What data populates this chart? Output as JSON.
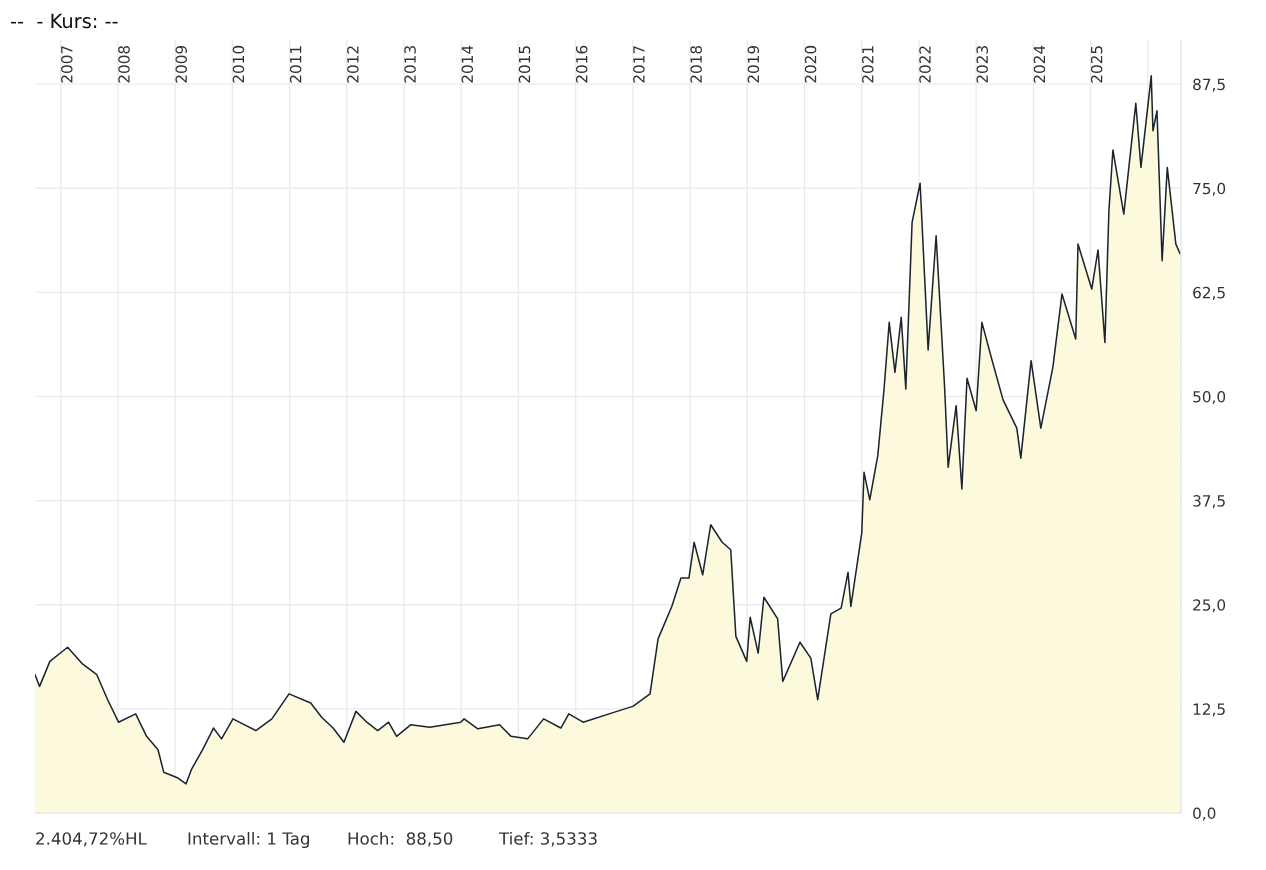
{
  "chart_data": {
    "type": "area",
    "title": "--  - Kurs: --",
    "x": [
      2006.55,
      2006.63,
      2006.81,
      2007.12,
      2007.38,
      2007.63,
      2007.82,
      2008.01,
      2008.31,
      2008.5,
      2008.7,
      2008.8,
      2009.05,
      2009.19,
      2009.29,
      2009.48,
      2009.67,
      2009.81,
      2010.01,
      2010.41,
      2010.69,
      2010.99,
      2011.37,
      2011.56,
      2011.76,
      2011.95,
      2012.16,
      2012.35,
      2012.54,
      2012.73,
      2012.87,
      2013.12,
      2013.45,
      2013.99,
      2014.05,
      2014.29,
      2014.67,
      2014.87,
      2015.16,
      2015.44,
      2015.74,
      2015.88,
      2016.13,
      2016.72,
      2017.0,
      2017.3,
      2017.44,
      2017.68,
      2017.84,
      2017.98,
      2018.07,
      2018.22,
      2018.36,
      2018.56,
      2018.71,
      2018.8,
      2018.99,
      2019.05,
      2019.19,
      2019.29,
      2019.53,
      2019.62,
      2019.92,
      2020.11,
      2020.23,
      2020.46,
      2020.64,
      2020.76,
      2020.81,
      2021.0,
      2021.04,
      2021.14,
      2021.28,
      2021.39,
      2021.48,
      2021.58,
      2021.69,
      2021.77,
      2021.88,
      2022.02,
      2022.16,
      2022.3,
      2022.45,
      2022.51,
      2022.65,
      2022.75,
      2022.84,
      2023.0,
      2023.1,
      2023.28,
      2023.47,
      2023.71,
      2023.78,
      2023.96,
      2024.13,
      2024.34,
      2024.5,
      2024.74,
      2024.78,
      2025.02,
      2025.13,
      2025.25,
      2025.32,
      2025.39,
      2025.58,
      2025.79,
      2025.88,
      2026.06,
      2026.09,
      2026.16,
      2026.25,
      2026.34,
      2026.49,
      2026.56
    ],
    "series": [
      {
        "color": "#fdf9dc",
        "values": [
          16.6,
          15.2,
          18.2,
          19.9,
          17.9,
          16.6,
          13.6,
          10.9,
          11.9,
          9.2,
          7.6,
          4.9,
          4.2,
          3.5,
          5.3,
          7.6,
          10.2,
          8.9,
          11.3,
          9.9,
          11.3,
          14.3,
          13.2,
          11.5,
          10.2,
          8.5,
          12.2,
          10.9,
          9.9,
          10.9,
          9.2,
          10.6,
          10.3,
          10.9,
          11.3,
          10.1,
          10.6,
          9.2,
          8.9,
          11.3,
          10.2,
          11.9,
          10.9,
          12.2,
          12.8,
          14.3,
          20.9,
          24.8,
          28.2,
          28.2,
          32.5,
          28.6,
          34.6,
          32.5,
          31.6,
          21.2,
          18.2,
          23.5,
          19.2,
          25.9,
          23.3,
          15.8,
          20.5,
          18.6,
          13.6,
          23.9,
          24.6,
          28.9,
          24.8,
          33.6,
          40.9,
          37.6,
          42.9,
          50.9,
          58.9,
          52.9,
          59.5,
          50.9,
          70.9,
          75.6,
          55.6,
          69.3,
          50.9,
          41.5,
          48.9,
          38.9,
          52.2,
          48.3,
          58.9,
          54.3,
          49.6,
          46.2,
          42.6,
          54.3,
          46.2,
          53.5,
          62.3,
          56.9,
          68.3,
          62.9,
          67.6,
          56.5,
          72.3,
          79.6,
          71.9,
          85.2,
          77.5,
          88.5,
          81.9,
          84.3,
          66.3,
          77.5,
          68.3,
          67.2
        ]
      }
    ],
    "xlim": [
      2006.55,
      2026.58
    ],
    "xticks": [
      2007,
      2008,
      2009,
      2010,
      2011,
      2012,
      2013,
      2014,
      2015,
      2016,
      2017,
      2018,
      2019,
      2020,
      2021,
      2022,
      2023,
      2024,
      2025,
      {
        "value": 2026,
        "label": null
      }
    ],
    "ylim": [
      0,
      92.8
    ],
    "yticks": [
      {
        "value": 0,
        "label": "0,0"
      },
      {
        "value": 12.5,
        "label": "12,5"
      },
      {
        "value": 25,
        "label": "25,0"
      },
      {
        "value": 37.5,
        "label": "37,5"
      },
      {
        "value": 50,
        "label": "50,0"
      },
      {
        "value": 62.5,
        "label": "62,5"
      },
      {
        "value": 75,
        "label": "75,0"
      },
      {
        "value": 87.5,
        "label": "87,5"
      }
    ],
    "grid": true,
    "annotations": [
      "2.404,72%HL",
      "Intervall: 1 Tag",
      "Hoch:  88,50",
      "Tief: 3,5333"
    ]
  }
}
